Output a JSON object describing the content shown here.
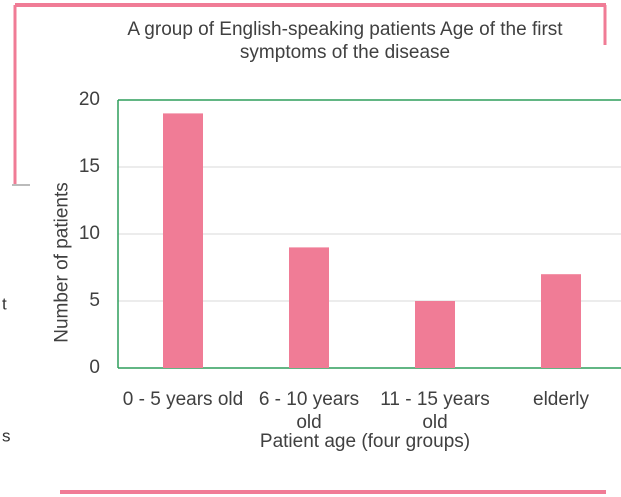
{
  "chart_data": {
    "type": "bar",
    "title": "A group of English-speaking patients Age of the first symptoms of the disease",
    "categories": [
      "0 - 5 years old",
      "6 - 10 years old",
      "11 - 15 years old",
      "elderly"
    ],
    "values": [
      19,
      9,
      5,
      7
    ],
    "color": "#f07c96",
    "xlabel": "Patient age (four groups)",
    "ylabel": "Number of patients",
    "ylim": [
      0,
      20
    ],
    "yticks": [
      0,
      5,
      10,
      15,
      20
    ],
    "grid": true
  },
  "fragments": [
    "t",
    "s"
  ]
}
